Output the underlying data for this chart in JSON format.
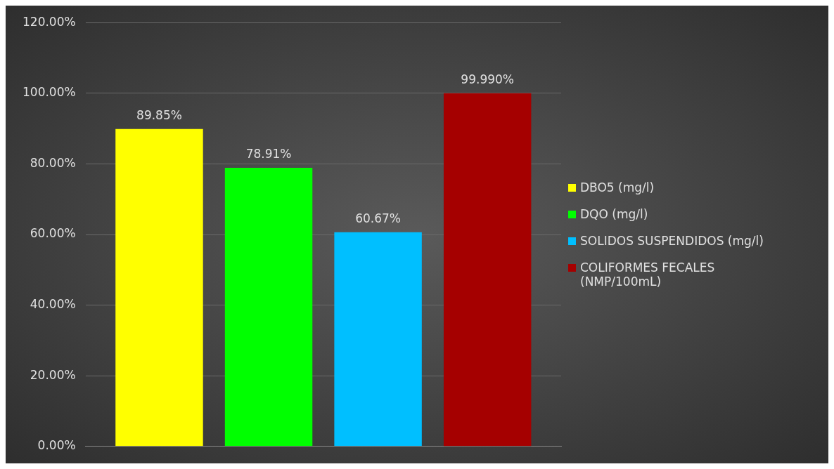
{
  "chart_data": {
    "type": "bar",
    "categories": [
      null
    ],
    "series": [
      {
        "name": "DBO5 (mg/l)",
        "color": "#ffff00",
        "values": [
          89.85
        ],
        "value_labels": [
          "89.85%"
        ]
      },
      {
        "name": "DQO (mg/l)",
        "color": "#00ff00",
        "values": [
          78.91
        ],
        "value_labels": [
          "78.91%"
        ]
      },
      {
        "name": "SOLIDOS SUSPENDIDOS (mg/l)",
        "color": "#00bfff",
        "values": [
          60.67
        ],
        "value_labels": [
          "60.67%"
        ]
      },
      {
        "name": "COLIFORMES FECALES (NMP/100mL)",
        "color": "#a50000",
        "values": [
          99.99
        ],
        "value_labels": [
          "99.990%"
        ]
      }
    ],
    "ylim": [
      0,
      120
    ],
    "yticks": [
      {
        "value": 0,
        "label": "0.00%"
      },
      {
        "value": 20,
        "label": "20.00%"
      },
      {
        "value": 40,
        "label": "40.00%"
      },
      {
        "value": 60,
        "label": "60.00%"
      },
      {
        "value": 80,
        "label": "80.00%"
      },
      {
        "value": 100,
        "label": "100.00%"
      },
      {
        "value": 120,
        "label": "120.00%"
      }
    ],
    "grid": "y",
    "legend": "right"
  }
}
